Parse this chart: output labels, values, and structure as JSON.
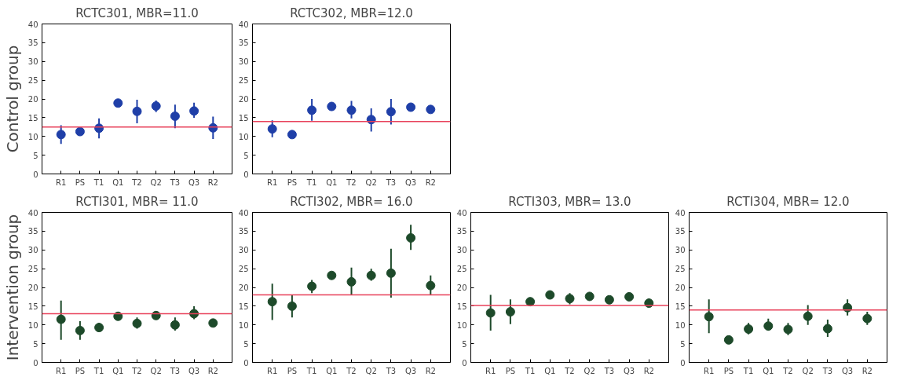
{
  "chart_data": [
    {
      "type": "scatter",
      "title": "RCTC301, MBR=11.0",
      "ylabel": "Control group",
      "categories": [
        "R1",
        "PS",
        "T1",
        "Q1",
        "T2",
        "Q2",
        "T3",
        "Q3",
        "R2"
      ],
      "ylim": [
        0,
        40
      ],
      "yticks": [
        0,
        5,
        10,
        15,
        20,
        25,
        30,
        35,
        40
      ],
      "marker": "circle",
      "grid": false,
      "series": [
        {
          "color": "#1f3fa8",
          "values": [
            10.5,
            11.3,
            12.2,
            18.9,
            16.7,
            18.1,
            15.4,
            16.8,
            12.3
          ],
          "errors": [
            [
              8,
              13
            ],
            [
              10.5,
              12
            ],
            [
              9.5,
              14.8
            ],
            [
              18.3,
              19.5
            ],
            [
              13.5,
              19.8
            ],
            [
              16.5,
              19.6
            ],
            [
              12.2,
              18.5
            ],
            [
              15,
              19
            ],
            [
              9.3,
              15.3
            ]
          ]
        }
      ],
      "ref_lines": [
        {
          "axis": "y",
          "value": 12.5,
          "color": "#e8415a"
        }
      ]
    },
    {
      "type": "scatter",
      "title": "RCTC302, MBR=12.0",
      "categories": [
        "R1",
        "PS",
        "T1",
        "Q1",
        "T2",
        "Q2",
        "T3",
        "Q3",
        "R2"
      ],
      "ylim": [
        0,
        40
      ],
      "yticks": [
        0,
        5,
        10,
        15,
        20,
        25,
        30,
        35,
        40
      ],
      "marker": "circle",
      "grid": false,
      "series": [
        {
          "color": "#1f3fa8",
          "values": [
            12,
            10.5,
            17,
            18,
            17,
            14.5,
            16.6,
            17.8,
            17.2
          ],
          "errors": [
            [
              9.8,
              14.3
            ],
            null,
            [
              14.2,
              20
            ],
            null,
            [
              14.8,
              19.5
            ],
            [
              11.3,
              17.5
            ],
            [
              13.2,
              20
            ],
            null,
            null
          ]
        }
      ],
      "ref_lines": [
        {
          "axis": "y",
          "value": 14,
          "color": "#e8415a"
        }
      ]
    },
    {
      "type": "scatter",
      "title": "RCTI301, MBR= 11.0",
      "ylabel": "Intervention group",
      "categories": [
        "R1",
        "PS",
        "T1",
        "Q1",
        "T2",
        "Q2",
        "T3",
        "Q3",
        "R2"
      ],
      "ylim": [
        0,
        40
      ],
      "yticks": [
        0,
        5,
        10,
        15,
        20,
        25,
        30,
        35,
        40
      ],
      "marker": "circle",
      "grid": false,
      "series": [
        {
          "color": "#1d4a2a",
          "values": [
            11.5,
            8.5,
            9.3,
            12.3,
            10.4,
            12.5,
            10,
            13,
            10.5
          ],
          "errors": [
            [
              6,
              16.5
            ],
            [
              6,
              11
            ],
            [
              8.5,
              10.5
            ],
            null,
            [
              9,
              12
            ],
            null,
            [
              8.5,
              12
            ],
            [
              11.5,
              15
            ],
            null
          ]
        }
      ],
      "ref_lines": [
        {
          "axis": "y",
          "value": 13,
          "color": "#e8415a"
        }
      ]
    },
    {
      "type": "scatter",
      "title": "RCTI302, MBR= 16.0",
      "categories": [
        "R1",
        "PS",
        "T1",
        "Q1",
        "T2",
        "Q2",
        "T3",
        "Q3",
        "R2"
      ],
      "ylim": [
        0,
        40
      ],
      "yticks": [
        0,
        5,
        10,
        15,
        20,
        25,
        30,
        35,
        40
      ],
      "marker": "circle",
      "grid": false,
      "series": [
        {
          "color": "#1d4a2a",
          "values": [
            16.2,
            15,
            20.3,
            23.2,
            21.5,
            23.2,
            23.8,
            33.2,
            20.5
          ],
          "errors": [
            [
              11.3,
              21
            ],
            [
              12,
              18
            ],
            [
              18.5,
              22
            ],
            null,
            [
              18,
              25.3
            ],
            [
              21.8,
              25
            ],
            [
              17.3,
              30.3
            ],
            [
              30,
              36.7
            ],
            [
              18,
              23.2
            ]
          ]
        }
      ],
      "ref_lines": [
        {
          "axis": "y",
          "value": 18,
          "color": "#e8415a"
        }
      ]
    },
    {
      "type": "scatter",
      "title": "RCTI303, MBR= 13.0",
      "categories": [
        "R1",
        "PS",
        "T1",
        "Q1",
        "T2",
        "Q2",
        "T3",
        "Q3",
        "R2"
      ],
      "ylim": [
        0,
        40
      ],
      "yticks": [
        0,
        5,
        10,
        15,
        20,
        25,
        30,
        35,
        40
      ],
      "marker": "circle",
      "grid": false,
      "series": [
        {
          "color": "#1d4a2a",
          "values": [
            13.2,
            13.5,
            16.2,
            18,
            17,
            17.6,
            16.7,
            17.5,
            15.8
          ],
          "errors": [
            [
              8.5,
              18
            ],
            [
              10.2,
              16.8
            ],
            [
              15,
              17
            ],
            null,
            [
              15.5,
              18.5
            ],
            null,
            [
              15.8,
              17.5
            ],
            null,
            [
              14.8,
              17
            ]
          ]
        }
      ],
      "ref_lines": [
        {
          "axis": "y",
          "value": 15.2,
          "color": "#e8415a"
        }
      ]
    },
    {
      "type": "scatter",
      "title": "RCTI304, MBR= 12.0",
      "categories": [
        "R1",
        "PS",
        "T1",
        "Q1",
        "T2",
        "Q2",
        "T3",
        "Q3",
        "R2"
      ],
      "ylim": [
        0,
        40
      ],
      "yticks": [
        0,
        5,
        10,
        15,
        20,
        25,
        30,
        35,
        40
      ],
      "marker": "circle",
      "grid": false,
      "series": [
        {
          "color": "#1d4a2a",
          "values": [
            12.2,
            6,
            8.9,
            9.7,
            8.8,
            12.3,
            9,
            14.6,
            11.7
          ],
          "errors": [
            [
              7.8,
              16.8
            ],
            [
              5,
              7
            ],
            [
              7.5,
              10.5
            ],
            [
              8.5,
              11.7
            ],
            [
              7.3,
              10.5
            ],
            [
              10,
              15.3
            ],
            [
              6.8,
              11.4
            ],
            [
              12.5,
              16.8
            ],
            [
              10,
              13.5
            ]
          ]
        }
      ],
      "ref_lines": [
        {
          "axis": "y",
          "value": 14,
          "color": "#e8415a"
        }
      ]
    }
  ]
}
